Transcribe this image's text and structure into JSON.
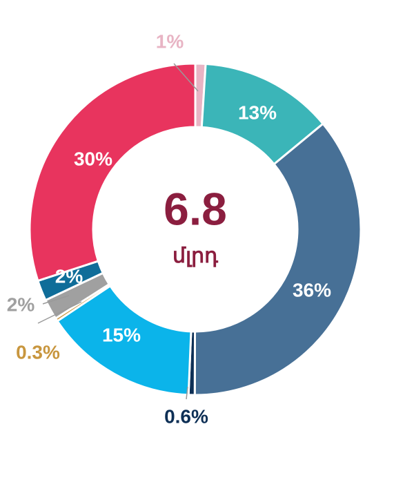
{
  "chart_data": {
    "type": "donut",
    "values": [
      1,
      13,
      36,
      0.6,
      15,
      0.3,
      2,
      2,
      30
    ],
    "value_labels": [
      "1%",
      "13%",
      "36%",
      "0.6%",
      "15%",
      "0.3%",
      "2%",
      "2%",
      "30%"
    ],
    "colors": [
      "#e8b4c4",
      "#3bb5b8",
      "#477096",
      "#0d2f55",
      "#0bb4ea",
      "#c8963e",
      "#a0a0a0",
      "#0f6d99",
      "#e8345e"
    ],
    "center_text": "6.8",
    "center_subtext": "մլրդ"
  }
}
